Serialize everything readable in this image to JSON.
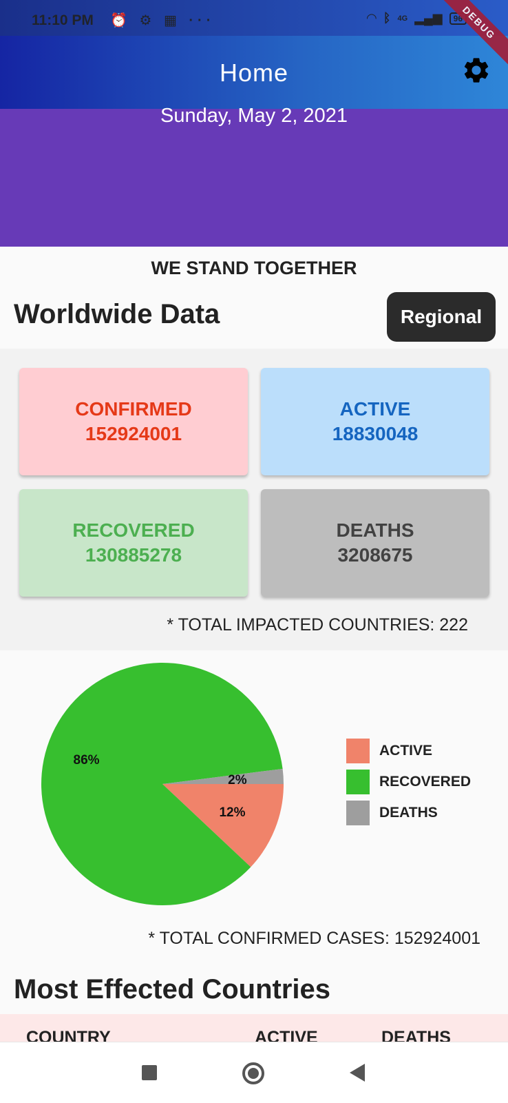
{
  "status_bar": {
    "time": "11:10 PM",
    "left_icons": [
      "alarm-icon",
      "gear-icon",
      "calculator-icon",
      "more-icon"
    ],
    "left_icon_glyphs": "⏰ ⚙ ▦ ···",
    "network": "4G",
    "battery": "96"
  },
  "app_bar": {
    "title": "Home",
    "settings_icon": "settings-gear-icon",
    "debug_banner": "DEBUG"
  },
  "header": {
    "date": "Sunday, May 2, 2021"
  },
  "tagline": "WE STAND TOGETHER",
  "worldwide": {
    "title": "Worldwide Data",
    "regional_button": "Regional"
  },
  "stats": {
    "confirmed": {
      "label": "CONFIRMED",
      "value": "152924001",
      "bg": "#ffcdd2",
      "color": "#e53918"
    },
    "active": {
      "label": "ACTIVE",
      "value": "18830048",
      "bg": "#bbdefb",
      "color": "#1565c0"
    },
    "recovered": {
      "label": "RECOVERED",
      "value": "130885278",
      "bg": "#c8e6c9",
      "color": "#4caf50"
    },
    "deaths": {
      "label": "DEATHS",
      "value": "3208675",
      "bg": "#bdbdbd",
      "color": "#424242"
    }
  },
  "impacted_countries": "* TOTAL IMPACTED COUNTRIES: 222",
  "chart_data": {
    "type": "pie",
    "title": "",
    "slices": [
      {
        "name": "ACTIVE",
        "value": 12,
        "label": "12%",
        "color": "#f0836a"
      },
      {
        "name": "RECOVERED",
        "value": 86,
        "label": "86%",
        "color": "#37bf2f"
      },
      {
        "name": "DEATHS",
        "value": 2,
        "label": "2%",
        "color": "#9e9e9e"
      }
    ],
    "legend_position": "right"
  },
  "total_confirmed": "* TOTAL CONFIRMED CASES: 152924001",
  "most_affected": {
    "title": "Most Effected Countries",
    "columns": [
      "COUNTRY",
      "ACTIVE",
      "DEATHS"
    ]
  },
  "nav_bar": {
    "icons": [
      "recents-square-icon",
      "home-circle-icon",
      "back-triangle-icon"
    ]
  }
}
